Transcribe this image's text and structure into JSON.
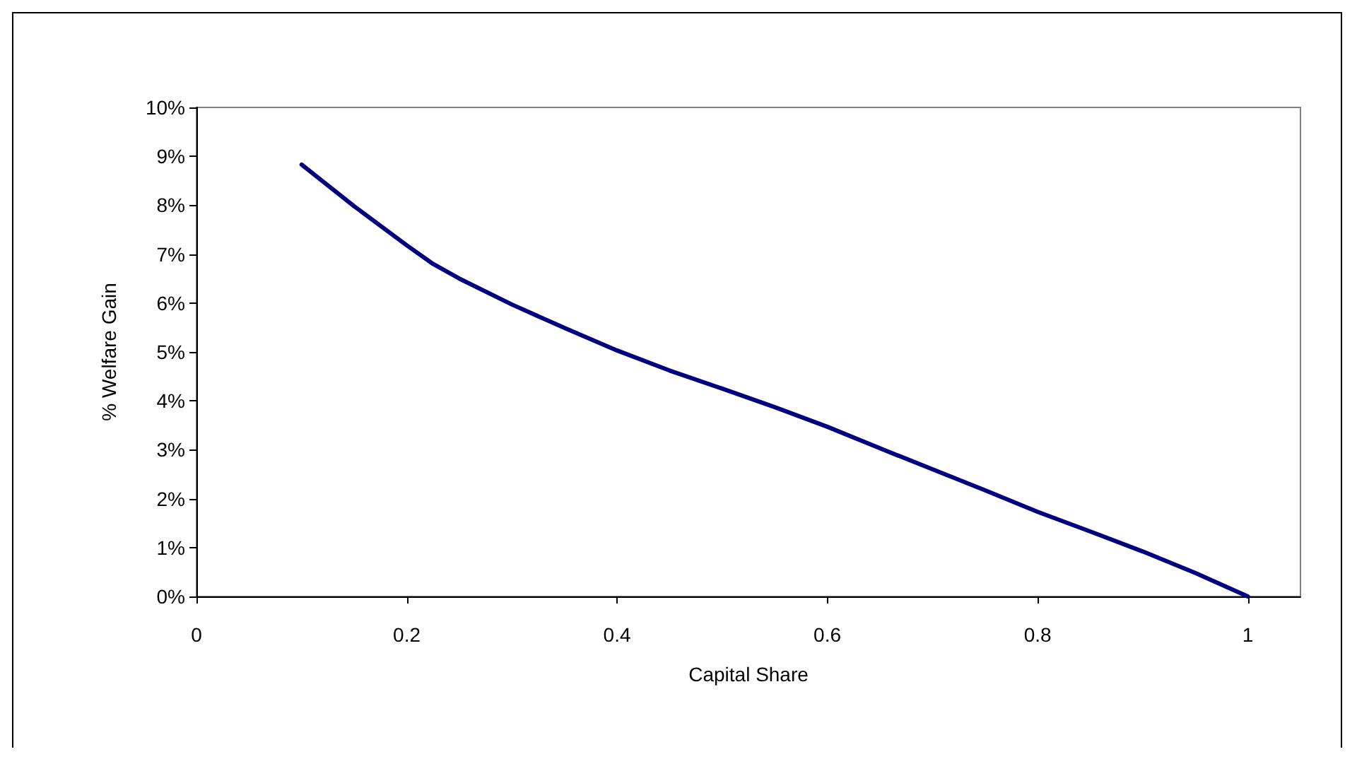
{
  "chart_data": {
    "type": "line",
    "xlabel": "Capital Share",
    "ylabel": "% Welfare Gain",
    "x": [
      0.1,
      0.15,
      0.2,
      0.225,
      0.25,
      0.3,
      0.35,
      0.4,
      0.45,
      0.5,
      0.55,
      0.6,
      0.65,
      0.7,
      0.75,
      0.8,
      0.85,
      0.9,
      0.95,
      1.0
    ],
    "series": [
      {
        "color": "#000080",
        "values": [
          8.83,
          7.98,
          7.18,
          6.8,
          6.5,
          5.97,
          5.49,
          5.03,
          4.62,
          4.25,
          3.87,
          3.47,
          3.03,
          2.6,
          2.17,
          1.73,
          1.33,
          0.92,
          0.48,
          0
        ]
      }
    ],
    "xlim": [
      0,
      1.05
    ],
    "xticks": [
      0,
      0.2,
      0.4,
      0.6,
      0.8,
      1
    ],
    "ylim": [
      0,
      10
    ],
    "yticks": [
      {
        "value": 0,
        "label": "0%"
      },
      {
        "value": 1,
        "label": "1%"
      },
      {
        "value": 2,
        "label": "2%"
      },
      {
        "value": 3,
        "label": "3%"
      },
      {
        "value": 4,
        "label": "4%"
      },
      {
        "value": 5,
        "label": "5%"
      },
      {
        "value": 6,
        "label": "6%"
      },
      {
        "value": 7,
        "label": "7%"
      },
      {
        "value": 8,
        "label": "8%"
      },
      {
        "value": 9,
        "label": "9%"
      },
      {
        "value": 10,
        "label": "10%"
      }
    ],
    "grid": false,
    "marker": "none",
    "line_style": "solid"
  }
}
